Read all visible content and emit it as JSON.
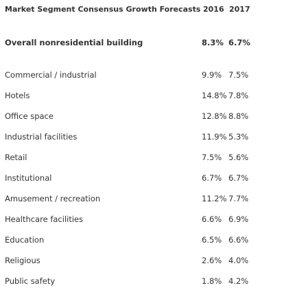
{
  "table": {
    "header": [
      "Market Segment Consensus Growth Forecasts",
      "2016",
      "2017"
    ],
    "overall": [
      "Overall nonresidential building",
      "8.3%",
      "6.7%"
    ],
    "rows": [
      [
        "Commercial / industrial",
        "9.9%",
        "7.5%"
      ],
      [
        "Hotels",
        "14.8%",
        "7.8%"
      ],
      [
        "Office space",
        "12.8%",
        "8.8%"
      ],
      [
        "Industrial facilities",
        "11.9%",
        "5.3%"
      ],
      [
        "Retail",
        "7.5%",
        "5.6%"
      ],
      [
        "Institutional",
        "6.7%",
        "6.7%"
      ],
      [
        "Amusement / recreation",
        "11.2%",
        "7.7%"
      ],
      [
        "Healthcare facilities",
        "6.6%",
        "6.9%"
      ],
      [
        "Education",
        "6.5%",
        "6.6%"
      ],
      [
        "Religious",
        "2.6%",
        "4.0%"
      ],
      [
        "Public safety",
        "1.8%",
        "4.2%"
      ]
    ]
  }
}
